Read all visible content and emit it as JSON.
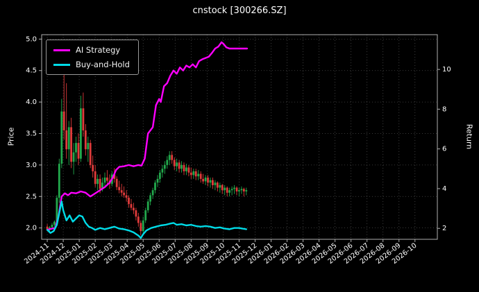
{
  "chart_data": {
    "type": "candlestick+line",
    "title": "cnstock [300266.SZ]",
    "ylabel_left": "Price",
    "ylabel_right": "Return",
    "grid": true,
    "legend_position": "upper left",
    "x_tick_labels": [
      "2024-11",
      "2024-12",
      "2025-01",
      "2025-02",
      "2025-03",
      "2025-04",
      "2025-05",
      "2025-06",
      "2025-07",
      "2025-08",
      "2025-09",
      "2025-10",
      "2025-11",
      "2025-12",
      "2026-01",
      "2026-02",
      "2026-03",
      "2026-04",
      "2026-05",
      "2026-06",
      "2026-07",
      "2026-08",
      "2026-09",
      "2026-10"
    ],
    "yticks_left": [
      2.0,
      2.5,
      3.0,
      3.5,
      4.0,
      4.5,
      5.0
    ],
    "yticks_right": [
      2,
      4,
      6,
      8,
      10
    ],
    "ylim_left": [
      1.82,
      5.07
    ],
    "ylim_right": [
      1.45,
      11.75
    ],
    "xlim_months": [
      -0.35,
      24.4
    ],
    "colors": {
      "background": "#000000",
      "grid": "#4d4d4d",
      "spine": "#b0b0b0",
      "text": "#ffffff",
      "candle_up": "#22a94c",
      "candle_down": "#e03b3b"
    },
    "candles_ohlc": {
      "columns": [
        "month_index",
        "open",
        "high",
        "low",
        "close"
      ],
      "rows": [
        [
          0.0,
          2.02,
          2.06,
          1.96,
          1.98
        ],
        [
          0.15,
          1.98,
          2.03,
          1.94,
          2.01
        ],
        [
          0.3,
          2.01,
          2.08,
          1.98,
          2.05
        ],
        [
          0.45,
          2.05,
          2.12,
          2.02,
          2.1
        ],
        [
          0.6,
          2.1,
          2.52,
          2.08,
          2.48
        ],
        [
          0.75,
          2.48,
          3.1,
          2.4,
          3.02
        ],
        [
          0.9,
          3.02,
          4.05,
          2.95,
          3.85
        ],
        [
          1.05,
          3.85,
          4.55,
          3.4,
          3.55
        ],
        [
          1.2,
          3.55,
          4.3,
          3.1,
          3.25
        ],
        [
          1.35,
          3.25,
          3.7,
          3.0,
          3.6
        ],
        [
          1.5,
          3.6,
          3.75,
          2.95,
          3.05
        ],
        [
          1.65,
          3.05,
          3.35,
          2.85,
          3.2
        ],
        [
          1.8,
          3.2,
          3.45,
          3.05,
          3.35
        ],
        [
          1.95,
          3.35,
          3.5,
          3.0,
          3.1
        ],
        [
          2.1,
          3.1,
          4.1,
          3.05,
          3.9
        ],
        [
          2.25,
          3.9,
          4.15,
          3.45,
          3.55
        ],
        [
          2.4,
          3.55,
          3.65,
          3.15,
          3.25
        ],
        [
          2.55,
          3.25,
          3.45,
          3.05,
          3.35
        ],
        [
          2.7,
          3.35,
          3.4,
          2.95,
          3.0
        ],
        [
          2.85,
          3.0,
          3.15,
          2.8,
          2.9
        ],
        [
          3.0,
          2.9,
          3.0,
          2.65,
          2.7
        ],
        [
          3.15,
          2.7,
          2.85,
          2.6,
          2.78
        ],
        [
          3.3,
          2.78,
          2.85,
          2.55,
          2.62
        ],
        [
          3.45,
          2.62,
          2.8,
          2.58,
          2.72
        ],
        [
          3.6,
          2.72,
          2.88,
          2.65,
          2.8
        ],
        [
          3.75,
          2.8,
          2.92,
          2.7,
          2.75
        ],
        [
          3.9,
          2.75,
          2.85,
          2.62,
          2.7
        ],
        [
          4.05,
          2.7,
          2.9,
          2.66,
          2.85
        ],
        [
          4.2,
          2.85,
          2.95,
          2.72,
          2.78
        ],
        [
          4.35,
          2.78,
          2.82,
          2.6,
          2.65
        ],
        [
          4.5,
          2.65,
          2.75,
          2.55,
          2.6
        ],
        [
          4.65,
          2.6,
          2.7,
          2.5,
          2.56
        ],
        [
          4.8,
          2.56,
          2.66,
          2.48,
          2.52
        ],
        [
          4.95,
          2.52,
          2.6,
          2.42,
          2.48
        ],
        [
          5.1,
          2.48,
          2.52,
          2.32,
          2.38
        ],
        [
          5.25,
          2.38,
          2.46,
          2.28,
          2.32
        ],
        [
          5.4,
          2.32,
          2.4,
          2.22,
          2.28
        ],
        [
          5.55,
          2.28,
          2.32,
          2.12,
          2.18
        ],
        [
          5.7,
          2.18,
          2.24,
          2.02,
          2.08
        ],
        [
          5.85,
          2.08,
          2.12,
          1.88,
          1.95
        ],
        [
          6.0,
          1.95,
          2.18,
          1.92,
          2.12
        ],
        [
          6.15,
          2.12,
          2.32,
          2.08,
          2.28
        ],
        [
          6.3,
          2.28,
          2.46,
          2.24,
          2.42
        ],
        [
          6.45,
          2.42,
          2.56,
          2.36,
          2.52
        ],
        [
          6.6,
          2.52,
          2.64,
          2.46,
          2.6
        ],
        [
          6.75,
          2.6,
          2.76,
          2.55,
          2.72
        ],
        [
          6.9,
          2.72,
          2.84,
          2.65,
          2.78
        ],
        [
          7.05,
          2.78,
          2.92,
          2.72,
          2.88
        ],
        [
          7.2,
          2.88,
          3.0,
          2.8,
          2.94
        ],
        [
          7.35,
          2.94,
          3.06,
          2.86,
          3.0
        ],
        [
          7.5,
          3.0,
          3.14,
          2.94,
          3.08
        ],
        [
          7.65,
          3.08,
          3.22,
          3.0,
          3.16
        ],
        [
          7.8,
          3.16,
          3.22,
          3.02,
          3.08
        ],
        [
          7.95,
          3.08,
          3.12,
          2.92,
          2.98
        ],
        [
          8.1,
          2.98,
          3.1,
          2.9,
          3.04
        ],
        [
          8.25,
          3.04,
          3.08,
          2.88,
          2.94
        ],
        [
          8.4,
          2.94,
          3.06,
          2.88,
          3.0
        ],
        [
          8.55,
          3.0,
          3.04,
          2.84,
          2.9
        ],
        [
          8.7,
          2.9,
          3.02,
          2.84,
          2.96
        ],
        [
          8.85,
          2.96,
          3.0,
          2.82,
          2.88
        ],
        [
          9.0,
          2.88,
          2.96,
          2.78,
          2.84
        ],
        [
          9.15,
          2.84,
          2.94,
          2.78,
          2.9
        ],
        [
          9.3,
          2.9,
          2.94,
          2.76,
          2.82
        ],
        [
          9.45,
          2.82,
          2.92,
          2.76,
          2.86
        ],
        [
          9.6,
          2.86,
          2.9,
          2.72,
          2.78
        ],
        [
          9.75,
          2.78,
          2.86,
          2.7,
          2.74
        ],
        [
          9.9,
          2.74,
          2.84,
          2.68,
          2.8
        ],
        [
          10.05,
          2.8,
          2.84,
          2.66,
          2.72
        ],
        [
          10.2,
          2.72,
          2.8,
          2.64,
          2.76
        ],
        [
          10.35,
          2.76,
          2.8,
          2.62,
          2.68
        ],
        [
          10.5,
          2.68,
          2.76,
          2.6,
          2.72
        ],
        [
          10.65,
          2.72,
          2.74,
          2.58,
          2.64
        ],
        [
          10.8,
          2.64,
          2.72,
          2.56,
          2.68
        ],
        [
          10.95,
          2.68,
          2.7,
          2.54,
          2.6
        ],
        [
          11.1,
          2.6,
          2.68,
          2.52,
          2.64
        ],
        [
          11.25,
          2.64,
          2.66,
          2.5,
          2.56
        ],
        [
          11.4,
          2.56,
          2.64,
          2.5,
          2.6
        ],
        [
          11.55,
          2.6,
          2.66,
          2.52,
          2.62
        ],
        [
          11.7,
          2.62,
          2.68,
          2.54,
          2.64
        ],
        [
          11.85,
          2.64,
          2.66,
          2.52,
          2.58
        ],
        [
          12.0,
          2.58,
          2.64,
          2.5,
          2.6
        ],
        [
          12.15,
          2.6,
          2.66,
          2.54,
          2.62
        ],
        [
          12.3,
          2.62,
          2.64,
          2.5,
          2.58
        ],
        [
          12.45,
          2.58,
          2.64,
          2.52,
          2.6
        ]
      ]
    },
    "series": [
      {
        "name": "AI Strategy",
        "color": "#ff00ff",
        "axis": "price",
        "points": [
          [
            0,
            1.97
          ],
          [
            0.3,
            1.99
          ],
          [
            0.5,
            2.0
          ],
          [
            0.7,
            2.18
          ],
          [
            0.9,
            2.5
          ],
          [
            1.1,
            2.55
          ],
          [
            1.3,
            2.52
          ],
          [
            1.5,
            2.56
          ],
          [
            1.8,
            2.55
          ],
          [
            2.1,
            2.58
          ],
          [
            2.4,
            2.56
          ],
          [
            2.7,
            2.5
          ],
          [
            3.0,
            2.55
          ],
          [
            3.3,
            2.6
          ],
          [
            3.6,
            2.65
          ],
          [
            3.9,
            2.72
          ],
          [
            4.1,
            2.8
          ],
          [
            4.3,
            2.92
          ],
          [
            4.5,
            2.97
          ],
          [
            4.8,
            2.98
          ],
          [
            5.1,
            3.0
          ],
          [
            5.4,
            2.98
          ],
          [
            5.7,
            3.0
          ],
          [
            5.9,
            2.99
          ],
          [
            6.1,
            3.1
          ],
          [
            6.3,
            3.5
          ],
          [
            6.45,
            3.55
          ],
          [
            6.6,
            3.6
          ],
          [
            6.8,
            3.95
          ],
          [
            7.0,
            4.05
          ],
          [
            7.1,
            4.0
          ],
          [
            7.3,
            4.25
          ],
          [
            7.5,
            4.3
          ],
          [
            7.7,
            4.42
          ],
          [
            7.9,
            4.5
          ],
          [
            8.1,
            4.45
          ],
          [
            8.3,
            4.55
          ],
          [
            8.5,
            4.5
          ],
          [
            8.7,
            4.58
          ],
          [
            8.9,
            4.55
          ],
          [
            9.1,
            4.6
          ],
          [
            9.3,
            4.55
          ],
          [
            9.5,
            4.65
          ],
          [
            9.7,
            4.68
          ],
          [
            9.9,
            4.7
          ],
          [
            10.1,
            4.72
          ],
          [
            10.3,
            4.78
          ],
          [
            10.5,
            4.85
          ],
          [
            10.7,
            4.88
          ],
          [
            10.9,
            4.95
          ],
          [
            11.0,
            4.93
          ],
          [
            11.2,
            4.87
          ],
          [
            11.4,
            4.85
          ],
          [
            12.5,
            4.85
          ]
        ]
      },
      {
        "name": "Buy-and-Hold",
        "color": "#00dce8",
        "axis": "price",
        "points": [
          [
            0,
            1.97
          ],
          [
            0.2,
            1.92
          ],
          [
            0.4,
            1.95
          ],
          [
            0.6,
            2.05
          ],
          [
            0.8,
            2.3
          ],
          [
            0.9,
            2.42
          ],
          [
            1.0,
            2.28
          ],
          [
            1.2,
            2.12
          ],
          [
            1.4,
            2.2
          ],
          [
            1.6,
            2.1
          ],
          [
            1.8,
            2.15
          ],
          [
            2.0,
            2.2
          ],
          [
            2.2,
            2.18
          ],
          [
            2.4,
            2.08
          ],
          [
            2.6,
            2.02
          ],
          [
            2.8,
            2.0
          ],
          [
            3.0,
            1.97
          ],
          [
            3.3,
            2.0
          ],
          [
            3.6,
            1.98
          ],
          [
            3.9,
            2.0
          ],
          [
            4.2,
            2.02
          ],
          [
            4.5,
            1.99
          ],
          [
            4.8,
            1.98
          ],
          [
            5.1,
            1.96
          ],
          [
            5.4,
            1.93
          ],
          [
            5.7,
            1.88
          ],
          [
            5.85,
            1.84
          ],
          [
            6.0,
            1.9
          ],
          [
            6.2,
            1.96
          ],
          [
            6.5,
            2.0
          ],
          [
            6.8,
            2.02
          ],
          [
            7.1,
            2.04
          ],
          [
            7.4,
            2.05
          ],
          [
            7.7,
            2.07
          ],
          [
            7.9,
            2.08
          ],
          [
            8.1,
            2.05
          ],
          [
            8.4,
            2.06
          ],
          [
            8.7,
            2.04
          ],
          [
            9.0,
            2.05
          ],
          [
            9.3,
            2.03
          ],
          [
            9.6,
            2.02
          ],
          [
            9.9,
            2.03
          ],
          [
            10.2,
            2.02
          ],
          [
            10.5,
            2.0
          ],
          [
            10.8,
            2.01
          ],
          [
            11.1,
            1.99
          ],
          [
            11.4,
            1.98
          ],
          [
            11.7,
            2.0
          ],
          [
            12.0,
            2.0
          ],
          [
            12.2,
            1.99
          ],
          [
            12.45,
            1.98
          ]
        ]
      }
    ]
  }
}
